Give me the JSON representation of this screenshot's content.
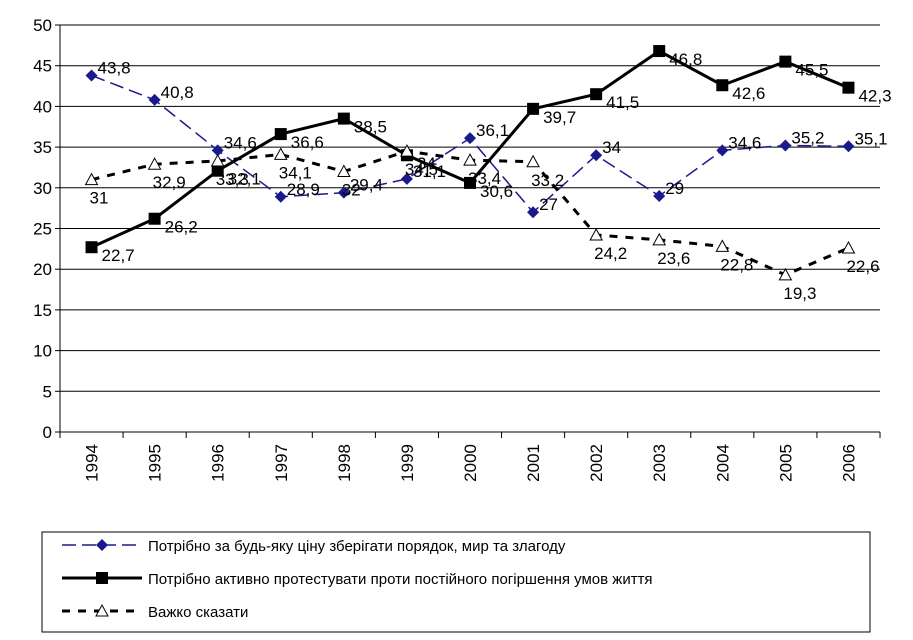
{
  "chart_data": {
    "type": "line",
    "categories": [
      "1994",
      "1995",
      "1996",
      "1997",
      "1998",
      "1999",
      "2000",
      "2001",
      "2002",
      "2003",
      "2004",
      "2005",
      "2006"
    ],
    "ylim": [
      0,
      50
    ],
    "yticks": [
      0,
      5,
      10,
      15,
      20,
      25,
      30,
      35,
      40,
      45,
      50
    ],
    "grid": true,
    "legend": "bottom",
    "series": [
      {
        "name": "Потрібно за будь-яку ціну зберігати порядок, мир та злагоду",
        "color": "#1a1a8c",
        "marker": "diamond",
        "dash": "dashed",
        "values": [
          43.8,
          40.8,
          34.6,
          28.9,
          29.4,
          31.1,
          36.1,
          27,
          34,
          29,
          34.6,
          35.2,
          35.1
        ],
        "value_labels": [
          "43,8",
          "40,8",
          "34,6",
          "28,9",
          "29,4",
          "31,1",
          "36,1",
          "27",
          "34",
          "29",
          "34,6",
          "35,2",
          "35,1"
        ]
      },
      {
        "name": "Потрібно активно протестувати проти постійного погіршення умов життя",
        "color": "#000000",
        "marker": "square",
        "dash": "solid",
        "values": [
          22.7,
          26.2,
          32.1,
          36.6,
          38.5,
          34,
          30.6,
          39.7,
          41.5,
          46.8,
          42.6,
          45.5,
          42.3
        ],
        "value_labels": [
          "22,7",
          "26,2",
          "32,1",
          "36,6",
          "38,5",
          "34",
          "30,6",
          "39,7",
          "41,5",
          "46,8",
          "42,6",
          "45,5",
          "42,3"
        ]
      },
      {
        "name": "Важко сказати",
        "color": "#000000",
        "marker": "triangle",
        "dash": "dotted",
        "values": [
          31,
          32.9,
          33.3,
          34.1,
          32,
          34.5,
          33.4,
          33.2,
          24.2,
          23.6,
          22.8,
          19.3,
          22.6
        ],
        "value_labels": [
          "31",
          "32,9",
          "33,3",
          "34,1",
          "32",
          "34,5",
          "33,4",
          "33,2",
          "24,2",
          "23,6",
          "22,8",
          "19,3",
          "22,6"
        ]
      }
    ]
  }
}
